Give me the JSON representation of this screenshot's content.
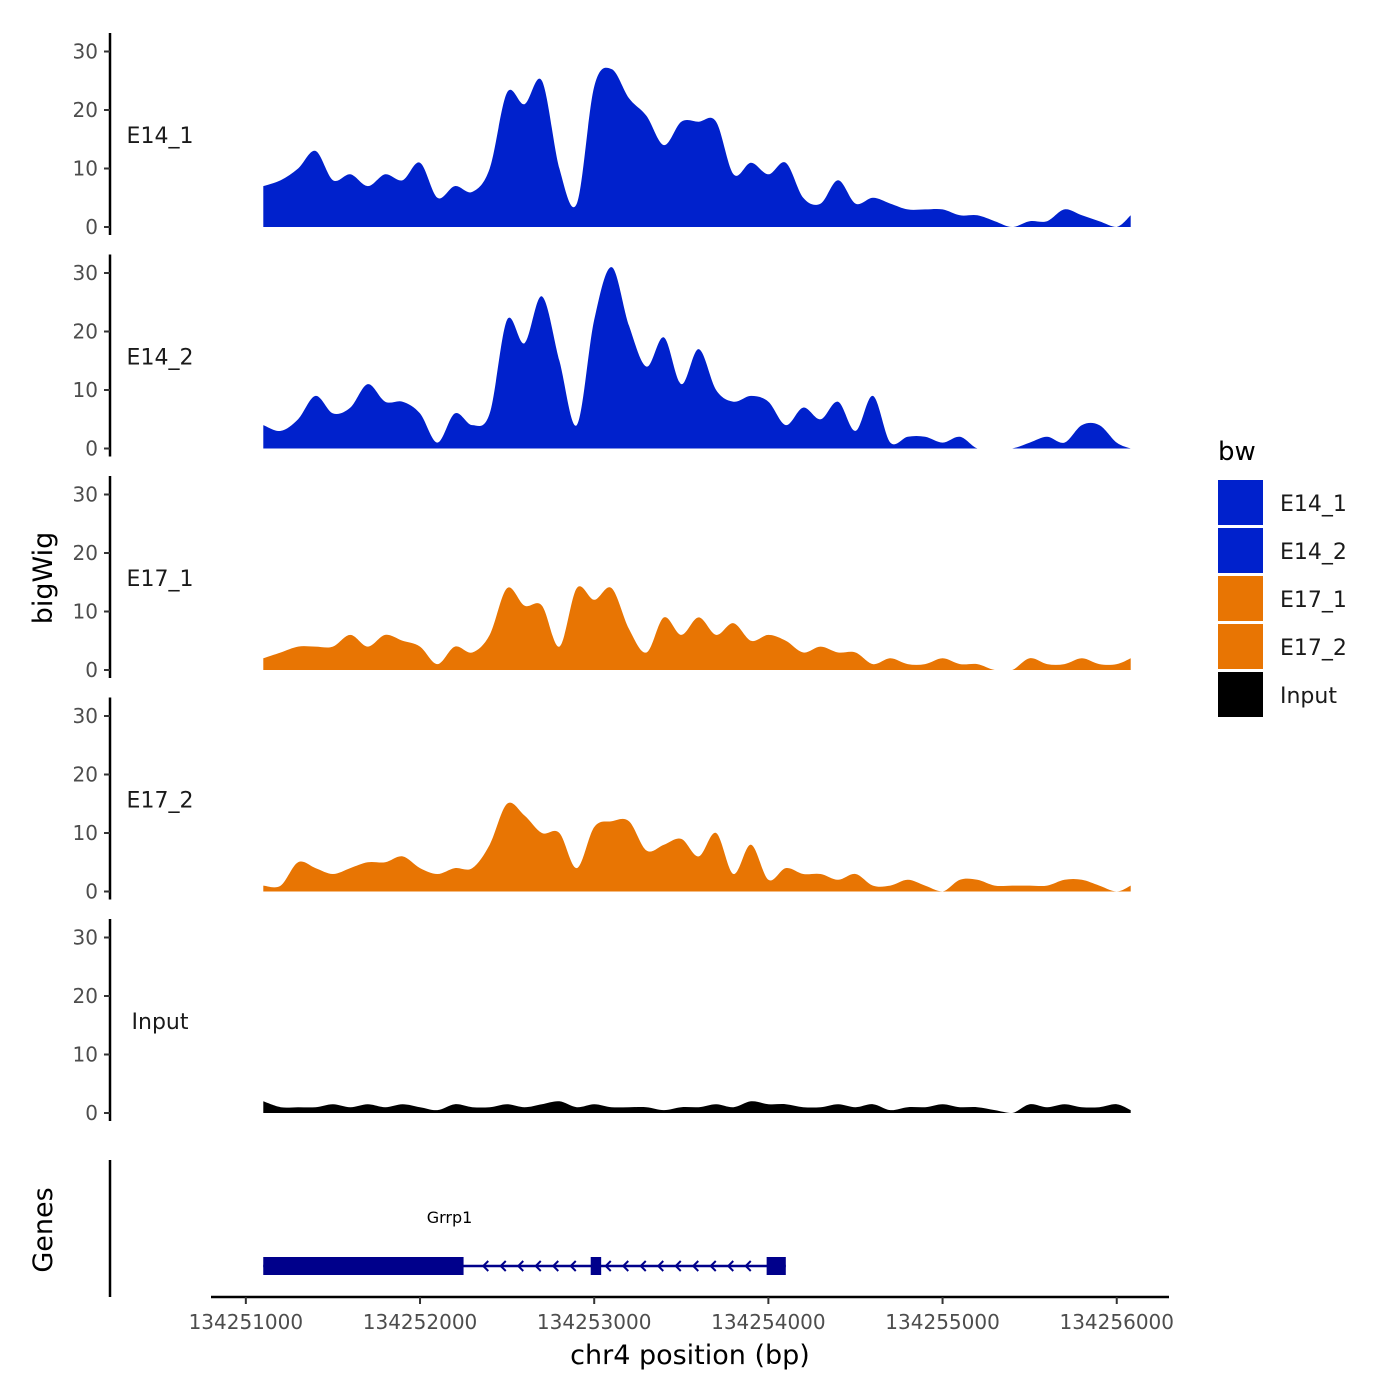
{
  "chart_data": {
    "type": "area",
    "title": "",
    "xlabel": "chr4 position (bp)",
    "ylabel": "bigWig",
    "genes_ylabel": "Genes",
    "xlim": [
      134250800,
      134256300
    ],
    "x_ticks": [
      134251000,
      134252000,
      134253000,
      134254000,
      134255000,
      134256000
    ],
    "x_tick_labels": [
      "134251000",
      "134252000",
      "134253000",
      "134254000",
      "134255000",
      "134256000"
    ],
    "ylim": [
      0,
      32
    ],
    "y_ticks": [
      0,
      10,
      20,
      30
    ],
    "y_tick_labels": [
      "0",
      "10",
      "20",
      "30"
    ],
    "legend": {
      "title": "bw",
      "position": "right"
    },
    "x": [
      134251100,
      134251200,
      134251300,
      134251400,
      134251500,
      134251600,
      134251700,
      134251800,
      134251900,
      134252000,
      134252100,
      134252200,
      134252300,
      134252400,
      134252500,
      134252600,
      134252700,
      134252800,
      134252900,
      134253000,
      134253100,
      134253200,
      134253300,
      134253400,
      134253500,
      134253600,
      134253700,
      134253800,
      134253900,
      134254000,
      134254100,
      134254200,
      134254300,
      134254400,
      134254500,
      134254600,
      134254700,
      134254800,
      134254900,
      134255000,
      134255100,
      134255200,
      134255300,
      134255400,
      134255500,
      134255600,
      134255700,
      134255800,
      134255900,
      134256000,
      134256080
    ],
    "series": [
      {
        "name": "E14_1",
        "color": "#0021CC",
        "values": [
          7,
          8,
          10,
          13,
          8,
          9,
          7,
          9,
          8,
          11,
          5,
          7,
          6,
          10,
          23,
          21,
          25,
          10,
          4,
          24,
          27,
          22,
          19,
          14,
          18,
          18,
          18,
          9,
          11,
          9,
          11,
          5,
          4,
          8,
          4,
          5,
          4,
          3,
          3,
          3,
          2,
          2,
          1,
          0,
          1,
          1,
          3,
          2,
          1,
          0,
          2
        ]
      },
      {
        "name": "E14_2",
        "color": "#0021CC",
        "values": [
          4,
          3,
          5,
          9,
          6,
          7,
          11,
          8,
          8,
          6,
          1,
          6,
          4,
          6,
          22,
          18,
          26,
          15,
          4,
          22,
          31,
          21,
          14,
          19,
          11,
          17,
          10,
          8,
          9,
          8,
          4,
          7,
          5,
          8,
          3,
          9,
          1,
          2,
          2,
          1,
          2,
          0,
          0,
          0,
          1,
          2,
          1,
          4,
          4,
          1,
          0
        ]
      },
      {
        "name": "E17_1",
        "color": "#E87503",
        "values": [
          2,
          3,
          4,
          4,
          4,
          6,
          4,
          6,
          5,
          4,
          1,
          4,
          3,
          6,
          14,
          11,
          11,
          4,
          14,
          12,
          14,
          7,
          3,
          9,
          6,
          9,
          6,
          8,
          5,
          6,
          5,
          3,
          4,
          3,
          3,
          1,
          2,
          1,
          1,
          2,
          1,
          1,
          0,
          0,
          2,
          1,
          1,
          2,
          1,
          1,
          2
        ]
      },
      {
        "name": "E17_2",
        "color": "#E87503",
        "values": [
          1,
          1,
          5,
          4,
          3,
          4,
          5,
          5,
          6,
          4,
          3,
          4,
          4,
          8,
          15,
          13,
          10,
          10,
          4,
          11,
          12,
          12,
          7,
          8,
          9,
          6,
          10,
          3,
          8,
          2,
          4,
          3,
          3,
          2,
          3,
          1,
          1,
          2,
          1,
          0,
          2,
          2,
          1,
          1,
          1,
          1,
          2,
          2,
          1,
          0,
          1
        ]
      },
      {
        "name": "Input",
        "color": "#000000",
        "values": [
          2,
          1,
          1,
          1,
          1.5,
          1,
          1.5,
          1,
          1.5,
          1,
          0.5,
          1.5,
          1,
          1,
          1.5,
          1,
          1.5,
          2,
          1,
          1.5,
          1,
          1,
          1,
          0.5,
          1,
          1,
          1.5,
          1,
          2,
          1.5,
          1.5,
          1,
          1,
          1.5,
          1,
          1.5,
          0.5,
          1,
          1,
          1.5,
          1,
          1,
          0.5,
          0,
          1.5,
          1,
          1.5,
          1,
          1,
          1.5,
          0.5
        ]
      }
    ],
    "genes": [
      {
        "name": "Grrp1",
        "strand": "-",
        "start": 134251100,
        "end": 134254100,
        "exons": [
          [
            134251100,
            134252250
          ],
          [
            134252980,
            134253040
          ],
          [
            134253990,
            134254100
          ]
        ]
      }
    ]
  }
}
